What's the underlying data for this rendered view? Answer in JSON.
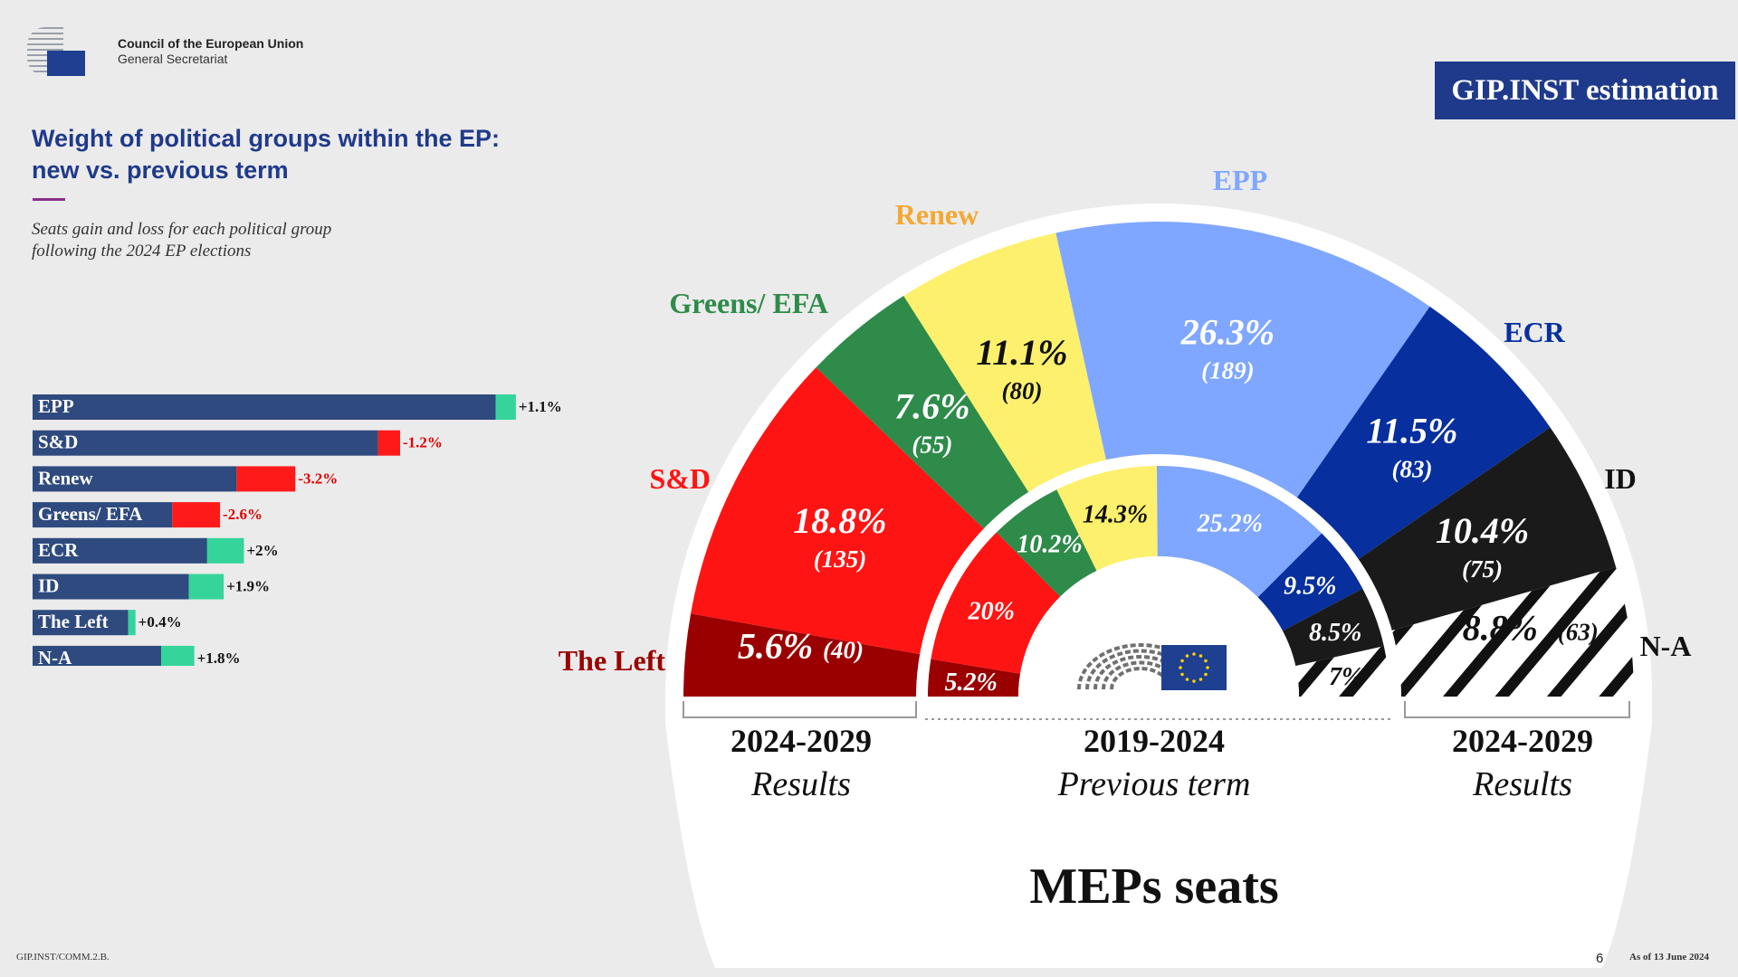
{
  "header": {
    "org_line1": "Council of the European Union",
    "org_line2": "General Secretariat",
    "badge": "GIP.INST estimation"
  },
  "title_line1": "Weight of political groups within the EP:",
  "title_line2": "new vs. previous term",
  "subtitle_line1": "Seats gain and loss for each political group",
  "subtitle_line2": "following the 2024 EP elections",
  "colors": {
    "navy": "#2e4a7e",
    "gain": "#35d49a",
    "loss": "#ff1a1a",
    "the_left": "#9b0000",
    "sd": "#ff1414",
    "greens": "#2e8b4a",
    "renew": "#fdf06d",
    "epp": "#7fa7ff",
    "ecr": "#072f9e",
    "id": "#1a1a1a",
    "na": "#ffffff"
  },
  "chart_data": [
    {
      "type": "bar",
      "orientation": "horizontal",
      "categories": [
        "EPP",
        "S&D",
        "Renew",
        "Greens/ EFA",
        "ECR",
        "ID",
        "The Left",
        "N-A"
      ],
      "series": [
        {
          "values": [
            26.3,
            18.8,
            11.1,
            7.6,
            11.5,
            10.4,
            5.6,
            8.8
          ]
        },
        {
          "values": [
            25.2,
            20.0,
            14.3,
            10.2,
            9.5,
            8.5,
            5.2,
            7.0
          ]
        }
      ],
      "change_labels": [
        "+1.1%",
        "-1.2%",
        "-3.2%",
        "-2.6%",
        "+2%",
        "+1.9%",
        "+0.4%",
        "+1.8%"
      ]
    },
    {
      "type": "pie",
      "variant": "hemicycle",
      "title": "MEPs seats",
      "groups": [
        "The Left",
        "S&D",
        "Greens/ EFA",
        "Renew",
        "EPP",
        "ECR",
        "ID",
        "N-A"
      ],
      "outer_pct": [
        5.6,
        18.8,
        7.6,
        11.1,
        26.3,
        11.5,
        10.4,
        8.8
      ],
      "outer_pct_labels": [
        "5.6%",
        "18.8%",
        "7.6%",
        "11.1%",
        "26.3%",
        "11.5%",
        "10.4%",
        "8.8%"
      ],
      "outer_seats": [
        40,
        135,
        55,
        80,
        189,
        83,
        75,
        63
      ],
      "outer_seat_labels": [
        "(40)",
        "(135)",
        "(55)",
        "(80)",
        "(189)",
        "(83)",
        "(75)",
        "(63)"
      ],
      "inner_pct": [
        5.2,
        20.0,
        10.2,
        14.3,
        25.2,
        9.5,
        8.5,
        7.0
      ],
      "inner_labels": [
        "5.2%",
        "20%",
        "10.2%",
        "14.3%",
        "25.2%",
        "9.5%",
        "8.5%",
        "7%"
      ],
      "term_left_years": "2024-2029",
      "term_left_caption": "Results",
      "term_center_years": "2019-2024",
      "term_center_caption": "Previous term",
      "term_right_years": "2024-2029",
      "term_right_caption": "Results"
    }
  ],
  "footer": {
    "code": "GIP.INST/COMM.2.B.",
    "page": "6",
    "as_of": "As of 13 June 2024"
  }
}
